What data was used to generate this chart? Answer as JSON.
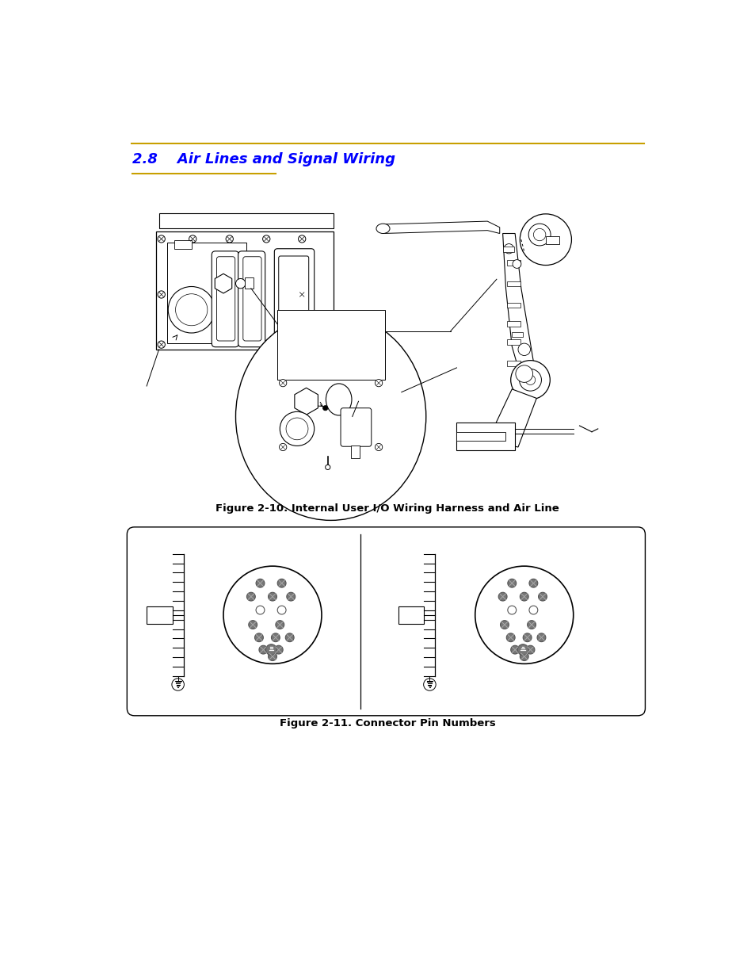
{
  "title_section": "2.8    Air Lines and Signal Wiring",
  "title_color": "#0000FF",
  "underline_color": "#C8A000",
  "fig10_caption": "Figure 2-10. Internal User I/O Wiring Harness and Air Line",
  "fig11_caption": "Figure 2-11. Connector Pin Numbers",
  "background_color": "#FFFFFF",
  "line_color": "#000000",
  "caption_fontsize": 9,
  "title_fontsize": 13
}
